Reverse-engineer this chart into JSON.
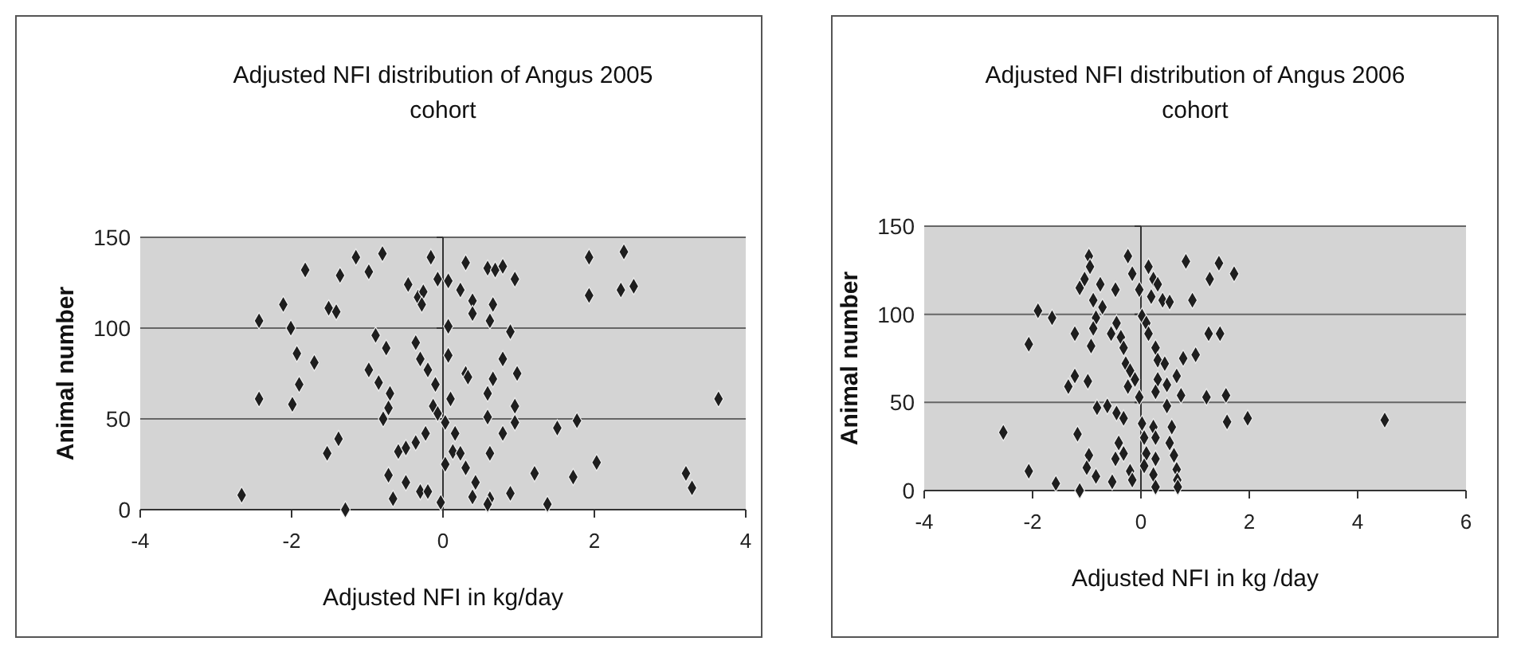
{
  "chart_data": [
    {
      "type": "scatter",
      "title": "Adjusted NFI distribution of Angus 2005 cohort",
      "xlabel": "Adjusted NFI in kg/day",
      "ylabel": "Animal number",
      "xlim": [
        -4,
        4
      ],
      "xticks": [
        -4,
        -2,
        0,
        2,
        4
      ],
      "ylim": [
        0,
        150
      ],
      "yticks": [
        0,
        50,
        100,
        150
      ],
      "grid": "y",
      "marker": "diamond",
      "series": [
        {
          "color": "#1e1e1e",
          "x": [
            -2.66,
            -2.43,
            -2.43,
            -2.11,
            -2.01,
            -1.93,
            -1.9,
            -1.99,
            -1.7,
            -1.82,
            -1.53,
            -1.38,
            -1.51,
            -1.41,
            -1.36,
            -1.29,
            -1.15,
            -0.98,
            -0.8,
            -0.98,
            -0.85,
            -0.89,
            -0.75,
            -0.7,
            -0.72,
            -0.79,
            -0.72,
            -0.66,
            -0.59,
            -0.49,
            -0.46,
            -0.33,
            -0.26,
            -0.28,
            -0.16,
            -0.36,
            -0.3,
            -0.2,
            -0.1,
            -0.13,
            -0.23,
            -0.36,
            -0.49,
            -0.3,
            -0.2,
            -0.03,
            -0.07,
            0.07,
            0.07,
            0.07,
            0.1,
            0.03,
            -0.07,
            0.16,
            0.03,
            0.13,
            0.23,
            0.3,
            0.43,
            0.39,
            0.62,
            0.59,
            0.89,
            0.23,
            0.3,
            0.39,
            0.39,
            0.3,
            0.33,
            0.59,
            0.69,
            0.79,
            0.66,
            0.62,
            0.89,
            0.79,
            0.95,
            0.98,
            0.59,
            0.66,
            0.59,
            0.95,
            0.95,
            0.79,
            0.62,
            1.21,
            1.38,
            1.51,
            1.77,
            1.72,
            2.03,
            1.93,
            1.93,
            2.39,
            2.35,
            2.52,
            3.21,
            3.29,
            3.64
          ],
          "values": [
            8,
            104,
            61,
            113,
            100,
            86,
            69,
            58,
            81,
            132,
            31,
            39,
            111,
            109,
            129,
            0,
            139,
            131,
            141,
            77,
            70,
            96,
            89,
            64,
            56,
            50,
            19,
            6,
            32,
            15,
            124,
            117,
            120,
            113,
            139,
            92,
            83,
            77,
            69,
            57,
            42,
            37,
            34,
            10,
            10,
            4,
            127,
            126,
            101,
            85,
            61,
            48,
            53,
            42,
            25,
            32,
            31,
            23,
            15,
            7,
            6,
            3,
            9,
            121,
            136,
            115,
            108,
            75,
            73,
            133,
            132,
            134,
            113,
            104,
            98,
            83,
            127,
            75,
            64,
            72,
            51,
            57,
            48,
            42,
            31,
            20,
            3,
            45,
            49,
            18,
            26,
            139,
            118,
            142,
            121,
            123,
            20,
            12,
            61
          ]
        }
      ]
    },
    {
      "type": "scatter",
      "title": "Adjusted NFI distribution of Angus 2006 cohort",
      "xlabel": "Adjusted NFI in kg /day",
      "ylabel": "Animal number",
      "xlim": [
        -4,
        6
      ],
      "xticks": [
        -4,
        -2,
        0,
        2,
        4,
        6
      ],
      "ylim": [
        0,
        150
      ],
      "yticks": [
        0,
        50,
        100,
        150
      ],
      "grid": "y",
      "marker": "diamond",
      "series": [
        {
          "color": "#1e1e1e",
          "x": [
            -2.54,
            -2.07,
            -2.07,
            -1.9,
            -1.64,
            -1.57,
            -1.22,
            -1.13,
            -1.17,
            -0.96,
            -1.0,
            -0.83,
            -1.34,
            -1.22,
            -0.98,
            -0.92,
            -1.13,
            -1.04,
            -0.96,
            -0.94,
            -0.88,
            -0.83,
            -0.88,
            -0.75,
            -0.71,
            -0.81,
            -0.62,
            -0.47,
            -0.45,
            -0.55,
            -0.37,
            -0.32,
            -0.24,
            -0.16,
            -0.28,
            -0.2,
            -0.11,
            -0.24,
            -0.45,
            -0.32,
            -0.41,
            -0.32,
            -0.47,
            -0.53,
            -0.2,
            -0.16,
            -0.03,
            0.02,
            0.1,
            0.14,
            -0.03,
            0.02,
            0.06,
            0.1,
            0.06,
            0.14,
            0.23,
            0.31,
            0.19,
            0.4,
            0.53,
            0.27,
            0.31,
            0.31,
            0.27,
            0.23,
            0.27,
            0.27,
            0.23,
            0.27,
            0.44,
            0.48,
            0.48,
            0.57,
            0.53,
            0.61,
            0.66,
            0.67,
            0.68,
            0.66,
            0.74,
            0.78,
            0.83,
            0.95,
            1.01,
            1.21,
            1.25,
            1.27,
            1.44,
            1.46,
            1.57,
            1.72,
            1.59,
            1.97,
            4.5
          ],
          "values": [
            33,
            11,
            83,
            102,
            98,
            4,
            89,
            0,
            32,
            20,
            13,
            8,
            59,
            65,
            62,
            82,
            115,
            120,
            133,
            127,
            108,
            98,
            92,
            117,
            104,
            47,
            48,
            114,
            95,
            89,
            87,
            81,
            133,
            123,
            72,
            68,
            63,
            59,
            44,
            41,
            27,
            21,
            18,
            5,
            11,
            6,
            114,
            99,
            95,
            89,
            53,
            38,
            30,
            21,
            14,
            127,
            120,
            117,
            110,
            108,
            107,
            81,
            74,
            63,
            56,
            36,
            30,
            18,
            9,
            2,
            72,
            60,
            48,
            36,
            27,
            20,
            12,
            6,
            2,
            65,
            54,
            75,
            130,
            108,
            77,
            53,
            89,
            120,
            129,
            89,
            54,
            123,
            39,
            41,
            40
          ]
        }
      ]
    }
  ]
}
